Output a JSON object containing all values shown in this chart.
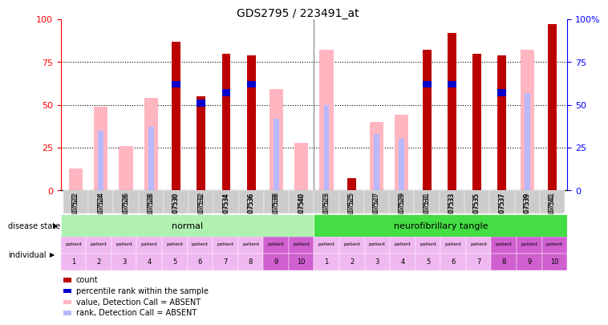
{
  "title": "GDS2795 / 223491_at",
  "samples": [
    "GSM107522",
    "GSM107524",
    "GSM107526",
    "GSM107528",
    "GSM107530",
    "GSM107532",
    "GSM107534",
    "GSM107536",
    "GSM107538",
    "GSM107540",
    "GSM107523",
    "GSM107525",
    "GSM107527",
    "GSM107529",
    "GSM107531",
    "GSM107533",
    "GSM107535",
    "GSM107537",
    "GSM107539",
    "GSM107541"
  ],
  "count": [
    0,
    0,
    0,
    0,
    87,
    55,
    80,
    79,
    0,
    0,
    0,
    7,
    0,
    0,
    82,
    92,
    80,
    79,
    0,
    97
  ],
  "percentile_rank": [
    0,
    0,
    0,
    0,
    62,
    51,
    57,
    62,
    0,
    0,
    0,
    0,
    0,
    0,
    62,
    62,
    0,
    57,
    0,
    0
  ],
  "value_absent": [
    13,
    49,
    26,
    54,
    0,
    0,
    0,
    0,
    59,
    28,
    82,
    0,
    40,
    44,
    0,
    0,
    0,
    0,
    82,
    0
  ],
  "rank_absent": [
    0,
    35,
    0,
    37,
    0,
    0,
    0,
    0,
    42,
    0,
    50,
    0,
    33,
    30,
    0,
    0,
    0,
    0,
    57,
    0
  ],
  "individuals": [
    1,
    2,
    3,
    4,
    5,
    6,
    7,
    8,
    9,
    10,
    1,
    2,
    3,
    4,
    5,
    6,
    7,
    8,
    9,
    10
  ],
  "ind_light_color": "#f0b8f0",
  "ind_dark_color": "#d060d0",
  "normal_color": "#b0f0b0",
  "neuro_color": "#44dd44",
  "count_color": "#bb0000",
  "percentile_color": "#0000cc",
  "value_absent_color": "#ffb6c1",
  "rank_absent_color": "#b8b8ff",
  "gray_bg": "#cccccc",
  "ylim": [
    0,
    100
  ],
  "yticks": [
    0,
    25,
    50,
    75,
    100
  ]
}
